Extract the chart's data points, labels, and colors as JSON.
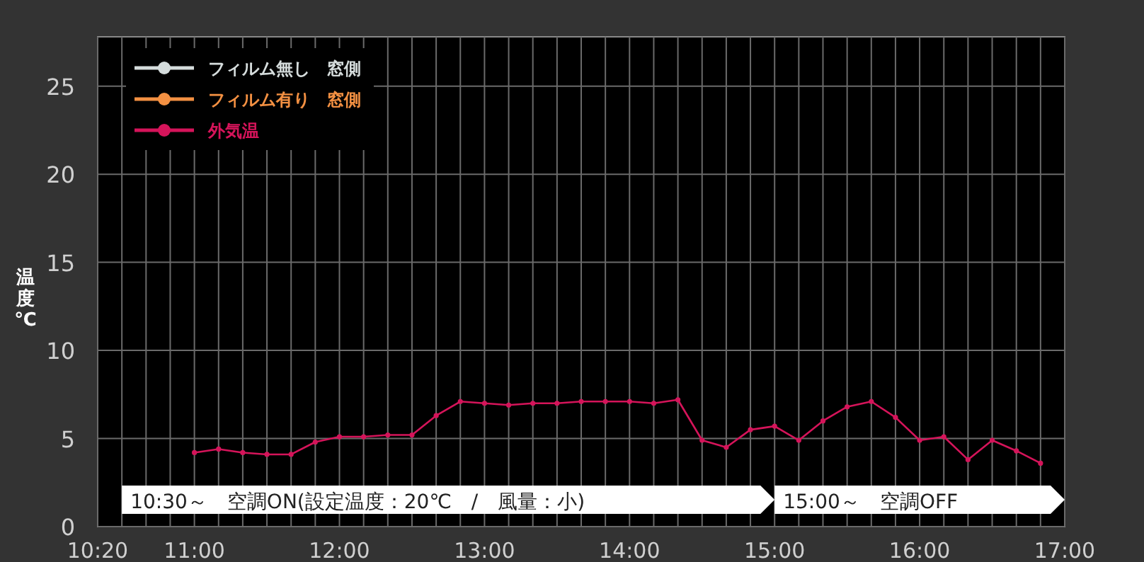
{
  "chart_data": {
    "type": "line",
    "ylabel": "温度℃",
    "x": [
      11,
      11.1667,
      11.3333,
      11.5,
      11.6667,
      11.8333,
      12,
      12.1667,
      12.3333,
      12.5,
      12.6667,
      12.8333,
      13,
      13.1667,
      13.3333,
      13.5,
      13.6667,
      13.8333,
      14,
      14.1667,
      14.3333,
      14.5,
      14.6667,
      14.8333,
      15,
      15.1667,
      15.3333,
      15.5,
      15.6667,
      15.8333,
      16,
      16.1667,
      16.3333,
      16.5,
      16.6667,
      16.8333
    ],
    "series": [
      {
        "name": "フィルム無し　窓側",
        "color": "#d5dcdc",
        "values": [
          null,
          null,
          null,
          null,
          null,
          null,
          null,
          null,
          null,
          null,
          null,
          null,
          null,
          null,
          null,
          null,
          null,
          null,
          null,
          null,
          null,
          null,
          null,
          null,
          null,
          null,
          null,
          null,
          null,
          null,
          null,
          null,
          null,
          null,
          null,
          null
        ]
      },
      {
        "name": "フィルム有り　窓側",
        "color": "#f39042",
        "values": [
          null,
          null,
          null,
          null,
          null,
          null,
          null,
          null,
          null,
          null,
          null,
          null,
          null,
          null,
          null,
          null,
          null,
          null,
          null,
          null,
          null,
          null,
          null,
          null,
          null,
          null,
          null,
          null,
          null,
          null,
          null,
          null,
          null,
          null,
          null,
          null
        ]
      },
      {
        "name": "外気温",
        "color": "#d5145a",
        "values": [
          4.2,
          4.4,
          4.2,
          4.1,
          4.1,
          4.8,
          5.1,
          5.1,
          5.2,
          5.2,
          6.3,
          7.1,
          7.0,
          6.9,
          7.0,
          7.0,
          7.1,
          7.1,
          7.1,
          7.0,
          7.2,
          4.9,
          4.5,
          5.5,
          5.7,
          4.9,
          6.0,
          6.8,
          7.1,
          6.2,
          4.9,
          5.1,
          3.8,
          4.9,
          4.3,
          3.6
        ]
      }
    ],
    "xlim": [
      10.3333,
      17
    ],
    "ylim": [
      0,
      27.8
    ],
    "xticks": [
      {
        "value": 10.3333,
        "label": "10:20"
      },
      {
        "value": 10.5,
        "label": null
      },
      {
        "value": 10.6667,
        "label": null
      },
      {
        "value": 10.8333,
        "label": null
      },
      {
        "value": 11,
        "label": "11:00"
      },
      {
        "value": 11.1667,
        "label": null
      },
      {
        "value": 11.3333,
        "label": null
      },
      {
        "value": 11.5,
        "label": null
      },
      {
        "value": 11.6667,
        "label": null
      },
      {
        "value": 11.8333,
        "label": null
      },
      {
        "value": 12,
        "label": "12:00"
      },
      {
        "value": 12.1667,
        "label": null
      },
      {
        "value": 12.3333,
        "label": null
      },
      {
        "value": 12.5,
        "label": null
      },
      {
        "value": 12.6667,
        "label": null
      },
      {
        "value": 12.8333,
        "label": null
      },
      {
        "value": 13,
        "label": "13:00"
      },
      {
        "value": 13.1667,
        "label": null
      },
      {
        "value": 13.3333,
        "label": null
      },
      {
        "value": 13.5,
        "label": null
      },
      {
        "value": 13.6667,
        "label": null
      },
      {
        "value": 13.8333,
        "label": null
      },
      {
        "value": 14,
        "label": "14:00"
      },
      {
        "value": 14.1667,
        "label": null
      },
      {
        "value": 14.3333,
        "label": null
      },
      {
        "value": 14.5,
        "label": null
      },
      {
        "value": 14.6667,
        "label": null
      },
      {
        "value": 14.8333,
        "label": null
      },
      {
        "value": 15,
        "label": "15:00"
      },
      {
        "value": 15.1667,
        "label": null
      },
      {
        "value": 15.3333,
        "label": null
      },
      {
        "value": 15.5,
        "label": null
      },
      {
        "value": 15.6667,
        "label": null
      },
      {
        "value": 15.8333,
        "label": null
      },
      {
        "value": 16,
        "label": "16:00"
      },
      {
        "value": 16.1667,
        "label": null
      },
      {
        "value": 16.3333,
        "label": null
      },
      {
        "value": 16.5,
        "label": null
      },
      {
        "value": 16.6667,
        "label": null
      },
      {
        "value": 16.8333,
        "label": null
      },
      {
        "value": 17,
        "label": "17:00"
      }
    ],
    "yticks": [
      0,
      5,
      10,
      15,
      20,
      25
    ],
    "grid": true,
    "legend": "top left",
    "marker": "circle",
    "bands": [
      {
        "axis": "x",
        "from": 10.5,
        "to": 15,
        "label": "10:30～　空調ON(設定温度：20℃　/　風量：小)",
        "color": "#ffffff"
      },
      {
        "axis": "x",
        "from": 15,
        "to": 17,
        "label": "15:00～　空調OFF",
        "color": "#ffffff"
      }
    ]
  }
}
